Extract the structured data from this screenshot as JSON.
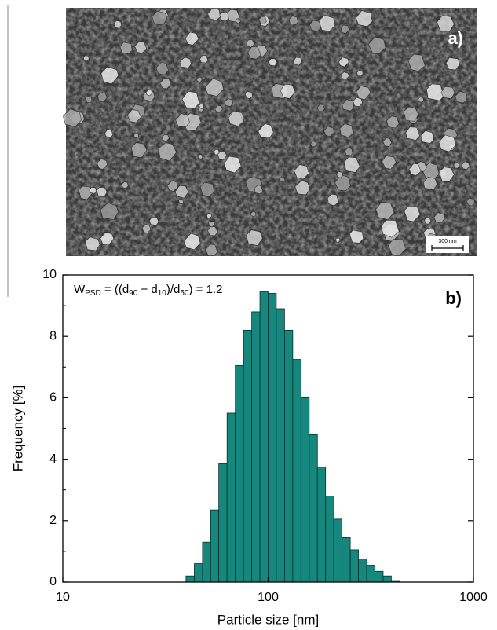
{
  "image_panel": {
    "label": "a)",
    "scale_bar": "300 nm"
  },
  "chart_data": {
    "type": "histogram",
    "panel_label": "b)",
    "annotation_parts": [
      "W",
      "PSD",
      " = ((d",
      "90",
      " − d",
      "10",
      ")/d",
      "50",
      ") = 1.2"
    ],
    "xlabel": "Particle size [nm]",
    "ylabel": "Frequency [%]",
    "xscale": "log",
    "xlim": [
      10,
      1000
    ],
    "xticks": [
      10,
      100,
      1000
    ],
    "ylim": [
      0,
      10
    ],
    "yticks": [
      0,
      2,
      4,
      6,
      8,
      10
    ],
    "color": "#16877c",
    "bins": [
      39.8,
      43.7,
      47.9,
      52.5,
      57.5,
      63.1,
      69.2,
      75.9,
      83.2,
      91.2,
      100,
      109.6,
      120.2,
      131.8,
      144.5,
      158.5,
      173.8,
      190.5,
      208.9,
      229.1,
      251.2,
      275.4,
      302,
      331.1,
      363.1,
      398.1,
      436.5
    ],
    "values": [
      0.2,
      0.6,
      1.3,
      2.35,
      3.85,
      5.5,
      7.05,
      8.2,
      8.8,
      9.45,
      9.4,
      8.9,
      8.2,
      7.25,
      6.0,
      4.8,
      3.75,
      2.8,
      2.05,
      1.45,
      1.05,
      0.75,
      0.55,
      0.35,
      0.2,
      0.05
    ]
  }
}
